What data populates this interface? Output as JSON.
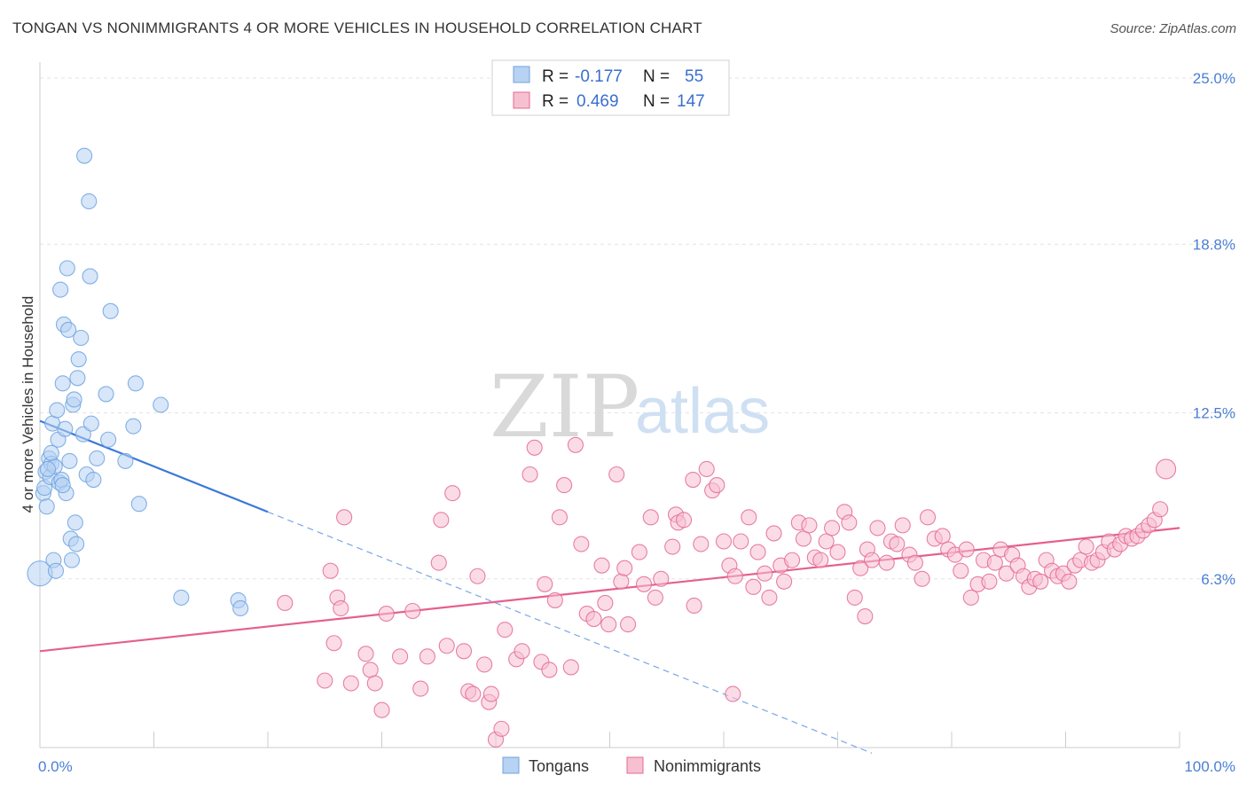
{
  "header": {
    "title": "TONGAN VS NONIMMIGRANTS 4 OR MORE VEHICLES IN HOUSEHOLD CORRELATION CHART",
    "source": "Source: ZipAtlas.com"
  },
  "watermark": {
    "zip": "ZIP",
    "atlas": "atlas"
  },
  "legend": {
    "rows": [
      {
        "r_label": "R =",
        "r_value": "-0.177",
        "n_label": "N =",
        "n_value": "55",
        "color": "#a8c8f0"
      },
      {
        "r_label": "R =",
        "r_value": "0.469",
        "n_label": "N =",
        "n_value": "147",
        "color": "#f6b8c8"
      }
    ]
  },
  "bottom_legend": {
    "items": [
      "Tongans",
      "Nonimmigrants"
    ]
  },
  "chart_data": {
    "type": "scatter",
    "title": "TONGAN VS NONIMMIGRANTS 4 OR MORE VEHICLES IN HOUSEHOLD CORRELATION CHART",
    "ylabel": "4 or more Vehicles in Household",
    "xlabel": "",
    "xlim": [
      0,
      100
    ],
    "ylim": [
      0,
      25.6
    ],
    "x_tick_labels": [
      "0.0%",
      "100.0%"
    ],
    "y_tick_labels": [
      "6.3%",
      "12.5%",
      "18.8%",
      "25.0%"
    ],
    "y_tick_values": [
      6.3,
      12.5,
      18.8,
      25.0
    ],
    "grid": true,
    "legend_position": "top-center",
    "series": [
      {
        "name": "Tongans",
        "color": "#6fa3e0",
        "fill": "#b7d2f2",
        "trend": {
          "x": [
            0,
            20
          ],
          "y": [
            12.2,
            8.8
          ],
          "extend_to_x": 73
        },
        "points": [
          [
            0.0,
            6.5
          ],
          [
            0.3,
            9.5
          ],
          [
            0.4,
            9.7
          ],
          [
            0.5,
            10.3
          ],
          [
            0.6,
            9.0
          ],
          [
            0.8,
            10.8
          ],
          [
            0.9,
            10.1
          ],
          [
            1.0,
            10.6
          ],
          [
            1.1,
            12.1
          ],
          [
            1.2,
            7.0
          ],
          [
            1.3,
            10.5
          ],
          [
            1.4,
            6.6
          ],
          [
            1.5,
            12.6
          ],
          [
            1.6,
            11.5
          ],
          [
            1.7,
            9.9
          ],
          [
            1.8,
            17.1
          ],
          [
            1.9,
            10.0
          ],
          [
            2.0,
            13.6
          ],
          [
            2.1,
            15.8
          ],
          [
            2.2,
            11.9
          ],
          [
            2.3,
            9.5
          ],
          [
            2.4,
            17.9
          ],
          [
            2.5,
            15.6
          ],
          [
            2.6,
            10.7
          ],
          [
            2.7,
            7.8
          ],
          [
            2.8,
            7.0
          ],
          [
            2.9,
            12.8
          ],
          [
            3.0,
            13.0
          ],
          [
            3.1,
            8.4
          ],
          [
            3.3,
            13.8
          ],
          [
            3.4,
            14.5
          ],
          [
            3.6,
            15.3
          ],
          [
            3.8,
            11.7
          ],
          [
            3.9,
            22.1
          ],
          [
            4.1,
            10.2
          ],
          [
            4.3,
            20.4
          ],
          [
            4.4,
            17.6
          ],
          [
            4.5,
            12.1
          ],
          [
            4.7,
            10.0
          ],
          [
            5.0,
            10.8
          ],
          [
            5.8,
            13.2
          ],
          [
            6.0,
            11.5
          ],
          [
            6.2,
            16.3
          ],
          [
            7.5,
            10.7
          ],
          [
            8.2,
            12.0
          ],
          [
            8.4,
            13.6
          ],
          [
            8.7,
            9.1
          ],
          [
            10.6,
            12.8
          ],
          [
            12.4,
            5.6
          ],
          [
            17.4,
            5.5
          ],
          [
            17.6,
            5.2
          ],
          [
            3.2,
            7.6
          ],
          [
            0.7,
            10.4
          ],
          [
            1.0,
            11.0
          ],
          [
            2.0,
            9.8
          ]
        ]
      },
      {
        "name": "Nonimmigrants",
        "color": "#e46a94",
        "fill": "#f7c0d1",
        "trend": {
          "x": [
            0,
            100
          ],
          "y": [
            3.6,
            8.2
          ]
        },
        "points": [
          [
            21.5,
            5.4
          ],
          [
            25.0,
            2.5
          ],
          [
            25.5,
            6.6
          ],
          [
            25.8,
            3.9
          ],
          [
            26.1,
            5.6
          ],
          [
            26.4,
            5.2
          ],
          [
            26.7,
            8.6
          ],
          [
            27.3,
            2.4
          ],
          [
            28.6,
            3.5
          ],
          [
            29.0,
            2.9
          ],
          [
            29.4,
            2.4
          ],
          [
            30.0,
            1.4
          ],
          [
            30.4,
            5.0
          ],
          [
            31.6,
            3.4
          ],
          [
            32.7,
            5.1
          ],
          [
            33.4,
            2.2
          ],
          [
            34.0,
            3.4
          ],
          [
            35.0,
            6.9
          ],
          [
            35.2,
            8.5
          ],
          [
            35.7,
            3.8
          ],
          [
            36.2,
            9.5
          ],
          [
            37.2,
            3.6
          ],
          [
            37.6,
            2.1
          ],
          [
            38.0,
            2.0
          ],
          [
            38.4,
            6.4
          ],
          [
            39.0,
            3.1
          ],
          [
            39.4,
            1.7
          ],
          [
            39.6,
            2.0
          ],
          [
            40.0,
            0.3
          ],
          [
            40.5,
            0.7
          ],
          [
            40.8,
            4.4
          ],
          [
            41.8,
            3.3
          ],
          [
            42.3,
            3.6
          ],
          [
            43.0,
            10.2
          ],
          [
            43.4,
            11.2
          ],
          [
            44.0,
            3.2
          ],
          [
            44.3,
            6.1
          ],
          [
            44.7,
            2.9
          ],
          [
            45.2,
            5.5
          ],
          [
            45.6,
            8.6
          ],
          [
            46.0,
            9.8
          ],
          [
            46.6,
            3.0
          ],
          [
            47.0,
            11.3
          ],
          [
            47.5,
            7.6
          ],
          [
            48.0,
            5.0
          ],
          [
            48.6,
            4.8
          ],
          [
            49.3,
            6.8
          ],
          [
            49.6,
            5.4
          ],
          [
            49.9,
            4.6
          ],
          [
            50.6,
            10.2
          ],
          [
            51.0,
            6.2
          ],
          [
            51.3,
            6.7
          ],
          [
            51.6,
            4.6
          ],
          [
            52.6,
            7.3
          ],
          [
            53.0,
            6.1
          ],
          [
            53.6,
            8.6
          ],
          [
            54.0,
            5.6
          ],
          [
            54.5,
            6.3
          ],
          [
            55.5,
            7.5
          ],
          [
            55.8,
            8.7
          ],
          [
            56.0,
            8.4
          ],
          [
            56.5,
            8.5
          ],
          [
            57.4,
            5.3
          ],
          [
            58.0,
            7.6
          ],
          [
            58.5,
            10.4
          ],
          [
            59.0,
            9.6
          ],
          [
            59.4,
            9.8
          ],
          [
            60.0,
            7.7
          ],
          [
            60.5,
            6.8
          ],
          [
            61.0,
            6.4
          ],
          [
            61.5,
            7.7
          ],
          [
            62.2,
            8.6
          ],
          [
            62.6,
            6.0
          ],
          [
            63.0,
            7.3
          ],
          [
            63.6,
            6.5
          ],
          [
            64.4,
            8.0
          ],
          [
            65.0,
            6.8
          ],
          [
            65.3,
            6.2
          ],
          [
            66.0,
            7.0
          ],
          [
            66.6,
            8.4
          ],
          [
            67.0,
            7.8
          ],
          [
            67.5,
            8.3
          ],
          [
            68.0,
            7.1
          ],
          [
            68.5,
            7.0
          ],
          [
            69.0,
            7.7
          ],
          [
            69.5,
            8.2
          ],
          [
            70.0,
            7.3
          ],
          [
            70.6,
            8.8
          ],
          [
            71.0,
            8.4
          ],
          [
            71.5,
            5.6
          ],
          [
            72.0,
            6.7
          ],
          [
            72.6,
            7.4
          ],
          [
            73.0,
            7.0
          ],
          [
            73.5,
            8.2
          ],
          [
            74.3,
            6.9
          ],
          [
            74.7,
            7.7
          ],
          [
            75.2,
            7.6
          ],
          [
            75.7,
            8.3
          ],
          [
            76.3,
            7.2
          ],
          [
            76.8,
            6.9
          ],
          [
            77.4,
            6.3
          ],
          [
            77.9,
            8.6
          ],
          [
            78.5,
            7.8
          ],
          [
            79.2,
            7.9
          ],
          [
            79.7,
            7.4
          ],
          [
            80.3,
            7.2
          ],
          [
            80.8,
            6.6
          ],
          [
            81.3,
            7.4
          ],
          [
            81.7,
            5.6
          ],
          [
            82.3,
            6.1
          ],
          [
            82.8,
            7.0
          ],
          [
            83.3,
            6.2
          ],
          [
            83.8,
            6.9
          ],
          [
            84.3,
            7.4
          ],
          [
            84.8,
            6.5
          ],
          [
            85.3,
            7.2
          ],
          [
            85.8,
            6.8
          ],
          [
            86.3,
            6.4
          ],
          [
            86.8,
            6.0
          ],
          [
            87.3,
            6.3
          ],
          [
            87.8,
            6.2
          ],
          [
            88.3,
            7.0
          ],
          [
            88.8,
            6.6
          ],
          [
            89.3,
            6.4
          ],
          [
            89.8,
            6.5
          ],
          [
            90.3,
            6.2
          ],
          [
            90.8,
            6.8
          ],
          [
            91.3,
            7.0
          ],
          [
            91.8,
            7.5
          ],
          [
            92.3,
            6.9
          ],
          [
            92.8,
            7.0
          ],
          [
            93.3,
            7.3
          ],
          [
            93.8,
            7.7
          ],
          [
            94.3,
            7.4
          ],
          [
            94.8,
            7.6
          ],
          [
            95.3,
            7.9
          ],
          [
            95.8,
            7.8
          ],
          [
            96.3,
            7.9
          ],
          [
            96.8,
            8.1
          ],
          [
            97.3,
            8.3
          ],
          [
            97.8,
            8.5
          ],
          [
            98.3,
            8.9
          ],
          [
            98.8,
            10.4
          ],
          [
            64.0,
            5.6
          ],
          [
            72.4,
            4.9
          ],
          [
            60.8,
            2.0
          ],
          [
            57.3,
            10.0
          ]
        ]
      }
    ]
  }
}
